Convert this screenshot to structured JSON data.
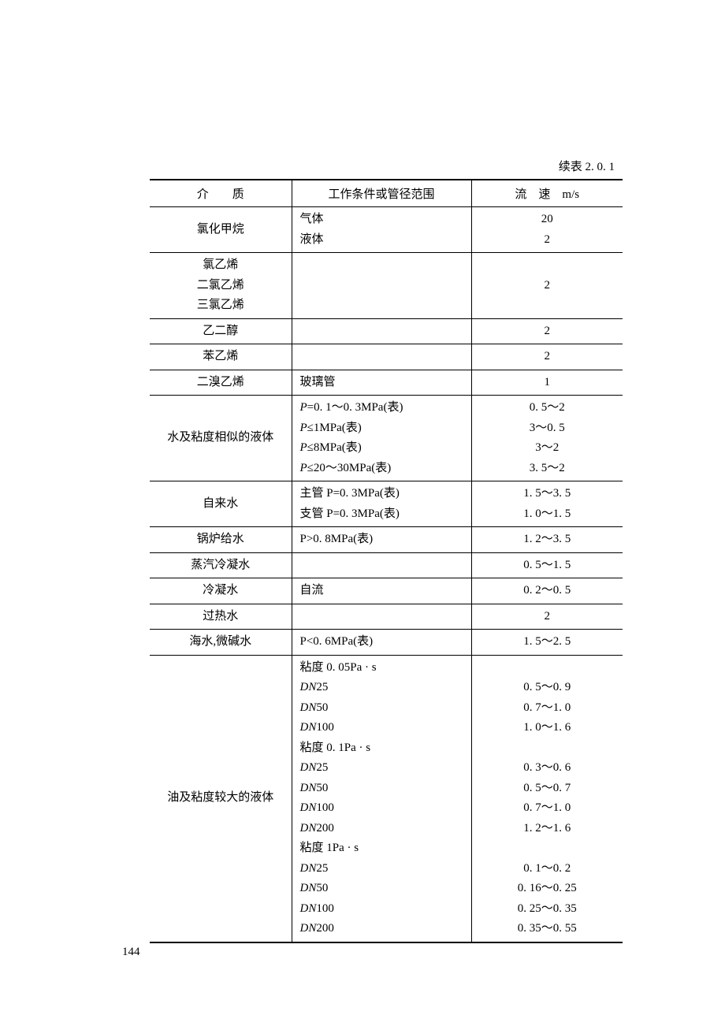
{
  "continuation_label": "续表 2. 0. 1",
  "page_number": "144",
  "headers": {
    "col1": "介　　质",
    "col2": "工作条件或管径范围",
    "col3": "流　速　m/s"
  },
  "rows": [
    {
      "medium": "氯化甲烷",
      "conditions": [
        "气体",
        "液体"
      ],
      "speeds": [
        "20",
        "2"
      ],
      "sep": true
    },
    {
      "medium_lines": [
        "氯乙烯",
        "二氯乙烯",
        "三氯乙烯"
      ],
      "conditions": [
        ""
      ],
      "speeds": [
        "2"
      ],
      "sep": true
    },
    {
      "medium": "乙二醇",
      "conditions": [
        ""
      ],
      "speeds": [
        "2"
      ],
      "sep": true
    },
    {
      "medium": "苯乙烯",
      "conditions": [
        ""
      ],
      "speeds": [
        "2"
      ],
      "sep": true
    },
    {
      "medium": "二溴乙烯",
      "conditions": [
        "玻璃管"
      ],
      "speeds": [
        "1"
      ],
      "sep": true
    },
    {
      "medium": "水及粘度相似的液体",
      "conditions": [
        "P=0. 1～0. 3MPa(表)",
        "P≤1MPa(表)",
        "P≤8MPa(表)",
        "P≤20～30MPa(表)"
      ],
      "speeds": [
        "0. 5～2",
        "3～0. 5",
        "3～2",
        "3. 5～2"
      ],
      "italic_prefix": true,
      "sep": true
    },
    {
      "medium": "自来水",
      "conditions": [
        "主管 P=0. 3MPa(表)",
        "支管 P=0. 3MPa(表)"
      ],
      "speeds": [
        "1. 5～3. 5",
        "1. 0～1. 5"
      ],
      "sep": true
    },
    {
      "medium": "锅炉给水",
      "conditions": [
        "P>0. 8MPa(表)"
      ],
      "speeds": [
        "1. 2～3. 5"
      ],
      "sep": true
    },
    {
      "medium": "蒸汽冷凝水",
      "conditions": [
        ""
      ],
      "speeds": [
        "0. 5～1. 5"
      ],
      "sep": true
    },
    {
      "medium": "冷凝水",
      "conditions": [
        "自流"
      ],
      "speeds": [
        "0. 2～0. 5"
      ],
      "sep": true
    },
    {
      "medium": "过热水",
      "conditions": [
        ""
      ],
      "speeds": [
        "2"
      ],
      "sep": true
    },
    {
      "medium": "海水,微碱水",
      "conditions": [
        "P<0. 6MPa(表)"
      ],
      "speeds": [
        "1. 5～2. 5"
      ],
      "sep": true
    },
    {
      "medium": "油及粘度较大的液体",
      "conditions": [
        "粘度 0. 05Pa · s",
        "DN25",
        "DN50",
        "DN100",
        "粘度 0. 1Pa · s",
        "DN25",
        "DN50",
        "DN100",
        "DN200",
        "粘度 1Pa · s",
        "DN25",
        "DN50",
        "DN100",
        "DN200"
      ],
      "speeds": [
        "",
        "0. 5～0. 9",
        "0. 7～1. 0",
        "1. 0～1. 6",
        "",
        "0. 3～0. 6",
        "0. 5～0. 7",
        "0. 7～1. 0",
        "1. 2～1. 6",
        "",
        "0. 1～0. 2",
        "0. 16～0. 25",
        "0. 25～0. 35",
        "0. 35～0. 55"
      ],
      "dn_italic": true,
      "last": true
    }
  ]
}
